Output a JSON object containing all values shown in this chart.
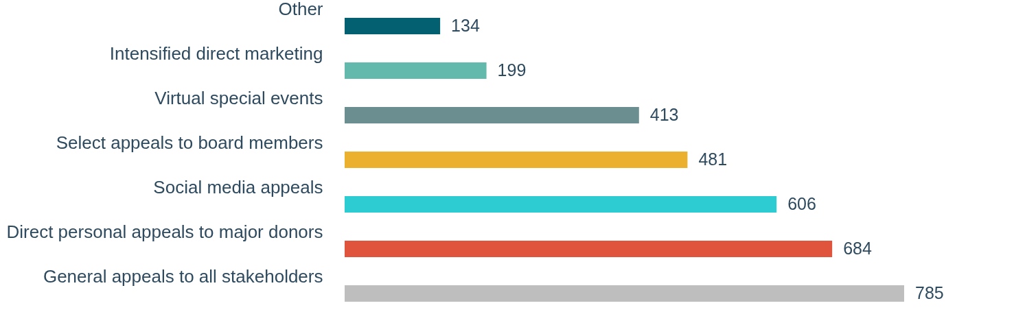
{
  "chart_data": {
    "type": "bar",
    "orientation": "horizontal",
    "data_labels": true,
    "categories": [
      "Other",
      "Intensified direct marketing",
      "Virtual special events",
      "Select appeals to board members",
      "Social media appeals",
      "Direct personal appeals to major donors",
      "General appeals to all stakeholders"
    ],
    "values": [
      134,
      199,
      413,
      481,
      606,
      684,
      785
    ],
    "colors": [
      "#036070",
      "#64b9ad",
      "#6b8e90",
      "#ebb02d",
      "#2dcbd2",
      "#e0533c",
      "#bebebe"
    ]
  }
}
